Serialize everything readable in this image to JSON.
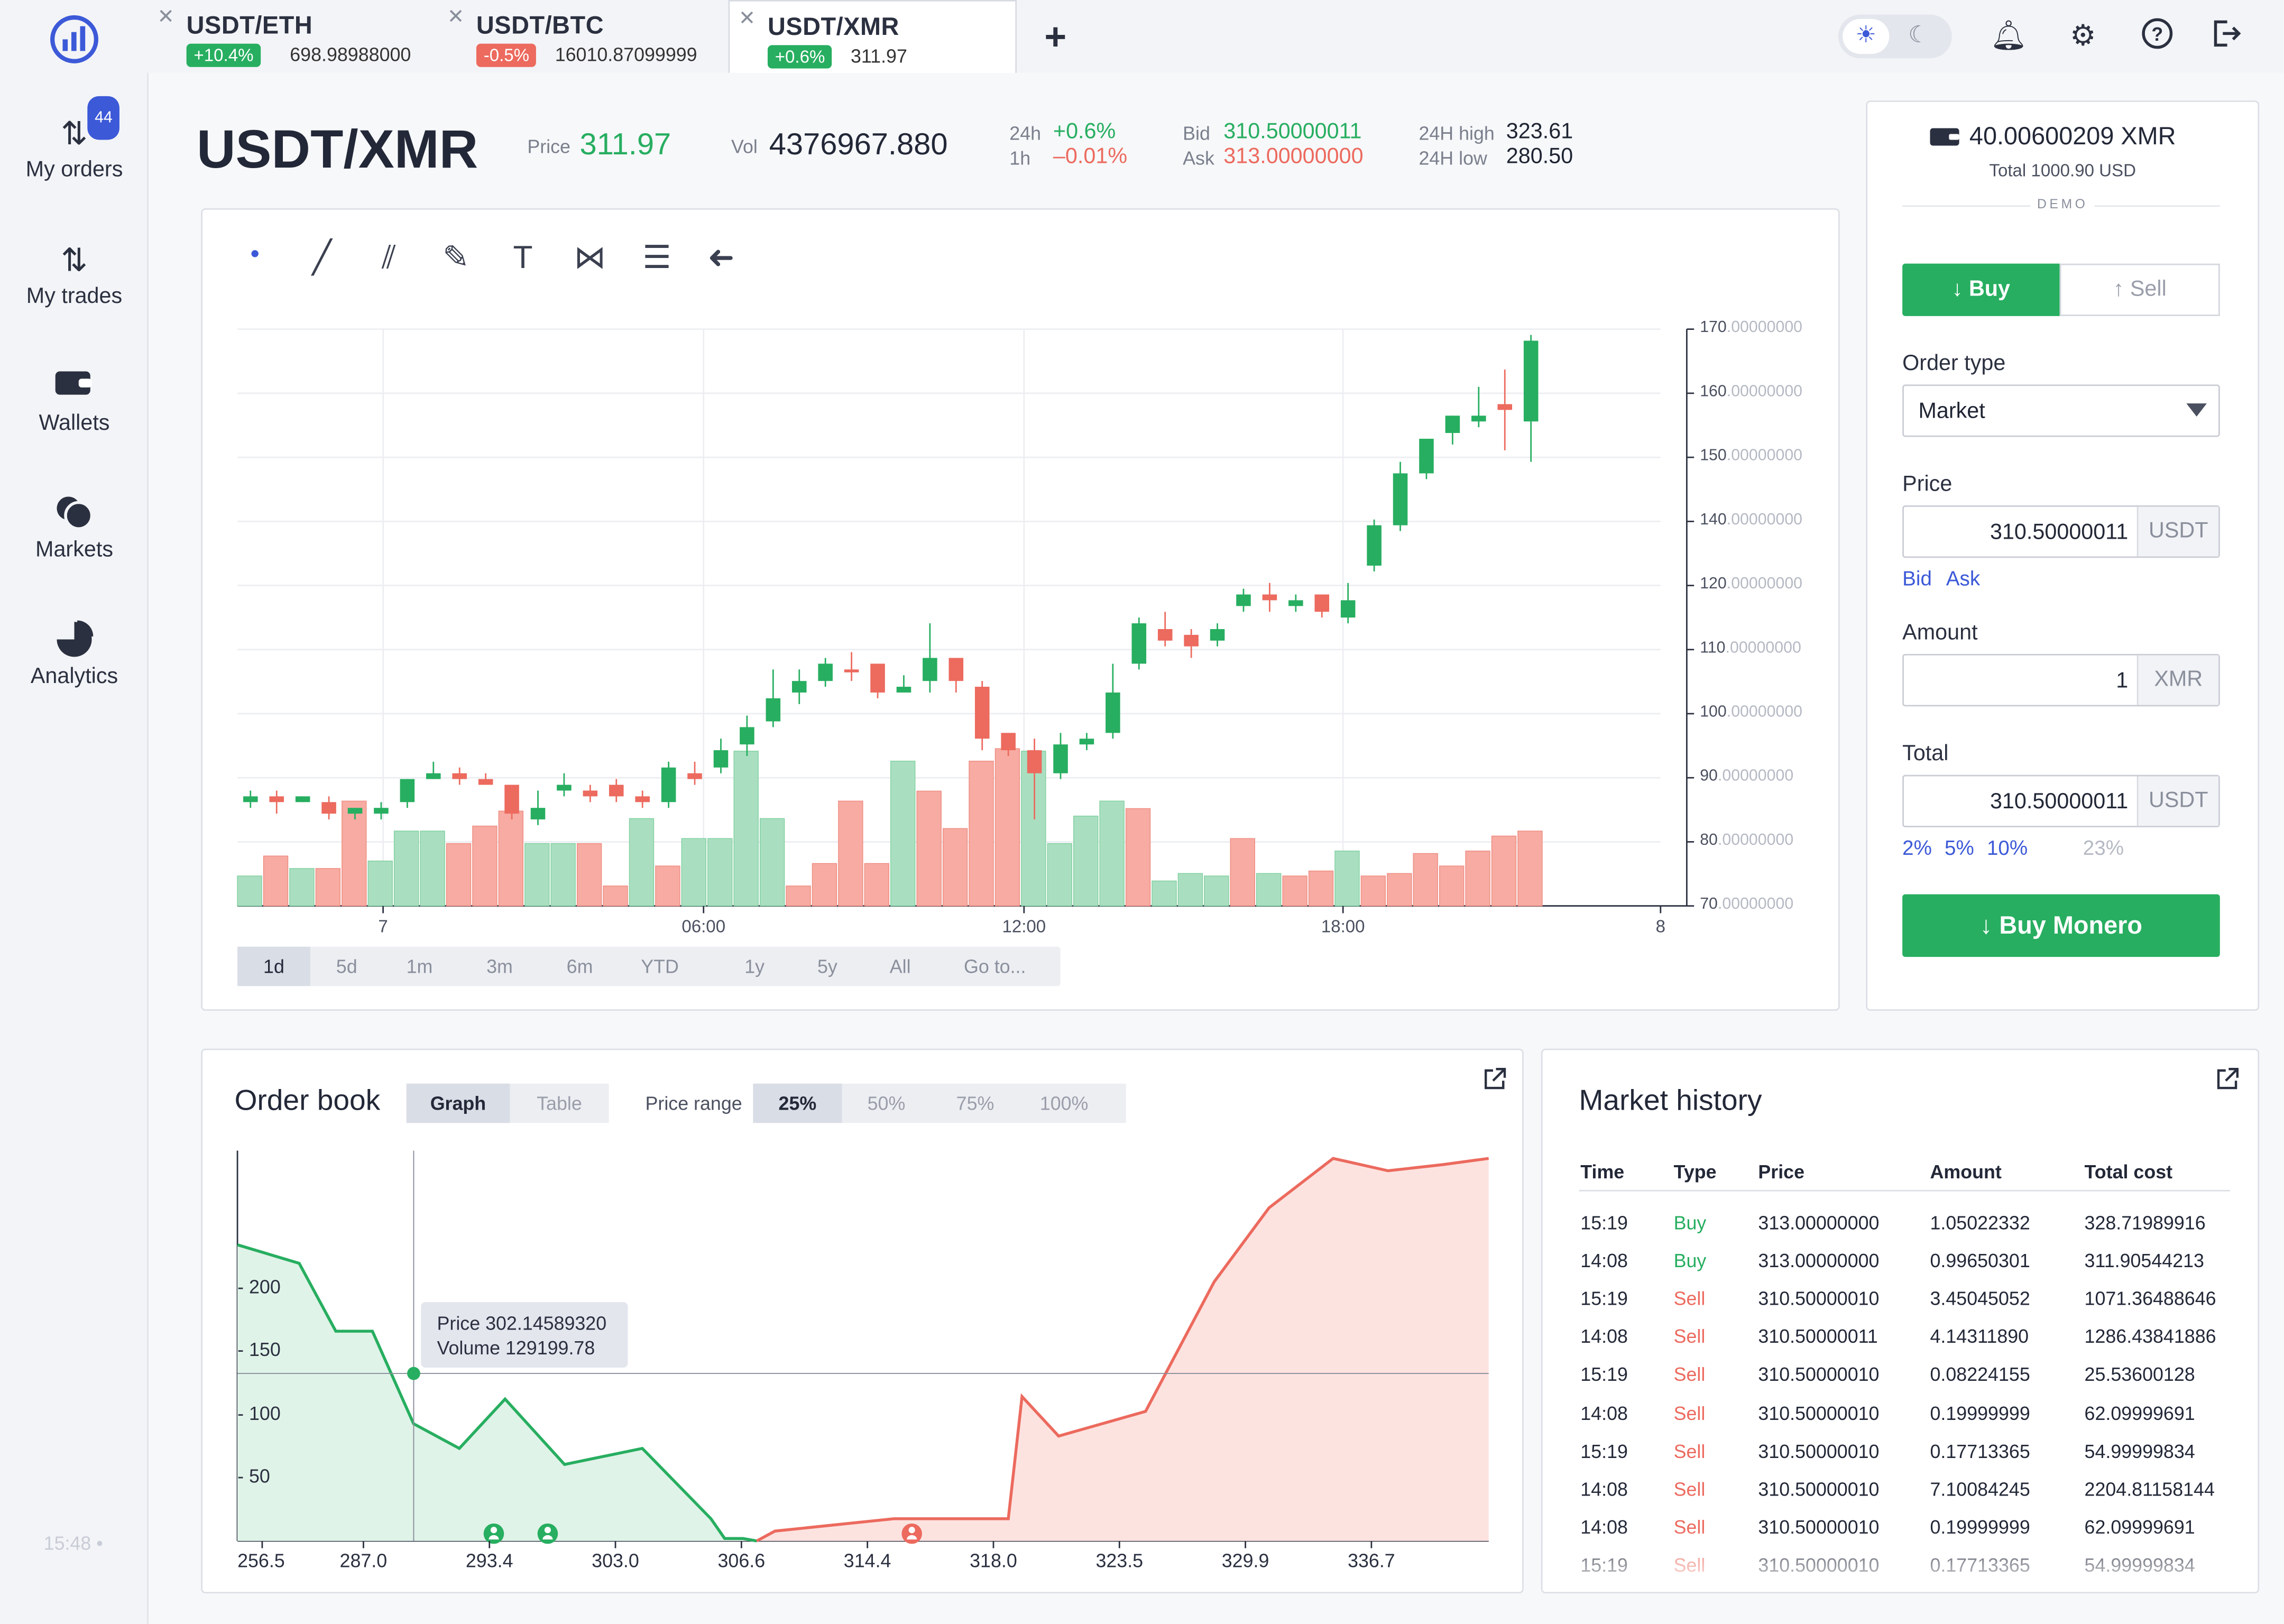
{
  "tabs": [
    {
      "pair": "USDT/ETH",
      "change": "+10.4%",
      "change_dir": "up",
      "price": "698.98988000"
    },
    {
      "pair": "USDT/BTC",
      "change": "-0.5%",
      "change_dir": "down",
      "price": "16010.87099999"
    },
    {
      "pair": "USDT/XMR",
      "change": "+0.6%",
      "change_dir": "up",
      "price": "311.97",
      "active": true
    }
  ],
  "topbar": {
    "add_tab": "+",
    "icons": [
      "sun-icon",
      "moon-icon",
      "bell-icon",
      "gear-icon",
      "help-icon",
      "logout-icon"
    ]
  },
  "sidebar": {
    "items": [
      {
        "label": "My orders",
        "icon": "arrows-updown-icon",
        "badge": "44"
      },
      {
        "label": "My trades",
        "icon": "trades-icon"
      },
      {
        "label": "Wallets",
        "icon": "wallet-icon"
      },
      {
        "label": "Markets",
        "icon": "markets-icon"
      },
      {
        "label": "Analytics",
        "icon": "pie-chart-icon"
      }
    ],
    "clock": "15:48 •"
  },
  "header": {
    "symbol": "USDT/XMR",
    "price_label": "Price",
    "price": "311.97",
    "vol_label": "Vol",
    "vol": "4376967.880",
    "h24_label": "24h",
    "h24": "+0.6%",
    "h1_label": "1h",
    "h1": "–0.01%",
    "bid_label": "Bid",
    "bid": "310.50000011",
    "ask_label": "Ask",
    "ask": "313.00000000",
    "high_label": "24H high",
    "high": "323.61",
    "low_label": "24H low",
    "low": "280.50"
  },
  "chart_tools": [
    "dot-icon",
    "line-tool-icon",
    "fib-tool-icon",
    "brush-tool-icon",
    "text-tool-icon",
    "pattern-tool-icon",
    "measure-tool-icon",
    "undo-icon"
  ],
  "chart_data": {
    "type": "candlestick",
    "ylim": [
      70,
      170
    ],
    "yticks": [
      {
        "int": "170",
        "dec": ".00000000"
      },
      {
        "int": "160",
        "dec": ".00000000"
      },
      {
        "int": "150",
        "dec": ".00000000"
      },
      {
        "int": "140",
        "dec": ".00000000"
      },
      {
        "int": "120",
        "dec": ".00000000"
      },
      {
        "int": "110",
        "dec": ".00000000"
      },
      {
        "int": "100",
        "dec": ".00000000"
      },
      {
        "int": "90",
        "dec": ".00000000"
      },
      {
        "int": "80",
        "dec": ".00000000"
      },
      {
        "int": "70",
        "dec": ".00000000"
      }
    ],
    "xticks": [
      "7",
      "06:00",
      "12:00",
      "18:00",
      "8"
    ],
    "candles": [
      [
        89,
        88,
        90,
        87,
        "up"
      ],
      [
        88,
        89,
        90,
        86,
        "down"
      ],
      [
        89,
        88,
        89,
        88,
        "up"
      ],
      [
        88,
        86,
        89,
        85,
        "down"
      ],
      [
        86,
        87,
        87,
        85,
        "up"
      ],
      [
        87,
        86,
        88,
        85,
        "up"
      ],
      [
        88,
        92,
        92,
        87,
        "up"
      ],
      [
        92,
        93,
        95,
        92,
        "up"
      ],
      [
        92,
        93,
        94,
        91,
        "down"
      ],
      [
        92,
        91,
        93,
        91,
        "down"
      ],
      [
        91,
        86,
        91,
        85,
        "down"
      ],
      [
        87,
        85,
        90,
        84,
        "up"
      ],
      [
        90,
        91,
        93,
        89,
        "up"
      ],
      [
        89,
        90,
        91,
        88,
        "down"
      ],
      [
        91,
        89,
        92,
        88,
        "down"
      ],
      [
        89,
        88,
        90,
        87,
        "down"
      ],
      [
        88,
        94,
        95,
        87,
        "up"
      ],
      [
        93,
        92,
        95,
        91,
        "down"
      ],
      [
        94,
        97,
        99,
        93,
        "up"
      ],
      [
        98,
        101,
        103,
        96,
        "up"
      ],
      [
        102,
        106,
        111,
        101,
        "up"
      ],
      [
        107,
        109,
        111,
        105,
        "up"
      ],
      [
        109,
        112,
        113,
        108,
        "up"
      ],
      [
        111,
        111,
        114,
        109,
        "down"
      ],
      [
        112,
        107,
        112,
        106,
        "down"
      ],
      [
        107,
        108,
        110,
        107,
        "up"
      ],
      [
        109,
        113,
        119,
        107,
        "up"
      ],
      [
        113,
        109,
        113,
        107,
        "down"
      ],
      [
        108,
        99,
        109,
        97,
        "down"
      ],
      [
        100,
        97,
        100,
        96,
        "down"
      ],
      [
        97,
        93,
        99,
        85,
        "down"
      ],
      [
        93,
        98,
        100,
        92,
        "up"
      ],
      [
        98,
        99,
        100,
        97,
        "up"
      ],
      [
        100,
        107,
        112,
        99,
        "up"
      ],
      [
        112,
        119,
        120,
        111,
        "up"
      ],
      [
        118,
        116,
        121,
        115,
        "down"
      ],
      [
        117,
        115,
        118,
        113,
        "down"
      ],
      [
        116,
        118,
        119,
        115,
        "up"
      ],
      [
        122,
        124,
        125,
        121,
        "up"
      ],
      [
        124,
        123,
        126,
        121,
        "down"
      ],
      [
        122,
        123,
        124,
        121,
        "up"
      ],
      [
        124,
        121,
        124,
        120,
        "down"
      ],
      [
        120,
        123,
        126,
        119,
        "up"
      ],
      [
        129,
        136,
        137,
        128,
        "up"
      ],
      [
        136,
        145,
        147,
        135,
        "up"
      ],
      [
        145,
        151,
        151,
        144,
        "up"
      ],
      [
        152,
        155,
        155,
        150,
        "up"
      ],
      [
        154,
        155,
        160,
        153,
        "up"
      ],
      [
        156,
        157,
        163,
        149,
        "down"
      ],
      [
        154,
        168,
        169,
        147,
        "up"
      ]
    ],
    "volumes": [
      [
        12,
        "up"
      ],
      [
        20,
        "down"
      ],
      [
        15,
        "up"
      ],
      [
        15,
        "down"
      ],
      [
        42,
        "down"
      ],
      [
        18,
        "up"
      ],
      [
        30,
        "up"
      ],
      [
        30,
        "up"
      ],
      [
        25,
        "down"
      ],
      [
        32,
        "down"
      ],
      [
        38,
        "down"
      ],
      [
        25,
        "up"
      ],
      [
        25,
        "up"
      ],
      [
        25,
        "down"
      ],
      [
        8,
        "down"
      ],
      [
        35,
        "up"
      ],
      [
        16,
        "down"
      ],
      [
        27,
        "up"
      ],
      [
        27,
        "up"
      ],
      [
        62,
        "up"
      ],
      [
        35,
        "up"
      ],
      [
        8,
        "down"
      ],
      [
        17,
        "down"
      ],
      [
        42,
        "down"
      ],
      [
        17,
        "down"
      ],
      [
        58,
        "up"
      ],
      [
        46,
        "down"
      ],
      [
        31,
        "down"
      ],
      [
        58,
        "down"
      ],
      [
        63,
        "down"
      ],
      [
        62,
        "up"
      ],
      [
        25,
        "up"
      ],
      [
        36,
        "up"
      ],
      [
        42,
        "up"
      ],
      [
        39,
        "down"
      ],
      [
        10,
        "up"
      ],
      [
        13,
        "up"
      ],
      [
        12,
        "up"
      ],
      [
        27,
        "down"
      ],
      [
        13,
        "up"
      ],
      [
        12,
        "down"
      ],
      [
        14,
        "down"
      ],
      [
        22,
        "up"
      ],
      [
        12,
        "down"
      ],
      [
        13,
        "down"
      ],
      [
        21,
        "down"
      ],
      [
        16,
        "down"
      ],
      [
        22,
        "down"
      ],
      [
        28,
        "down"
      ],
      [
        30,
        "down"
      ]
    ]
  },
  "ranges": {
    "items": [
      "1d",
      "5d",
      "1m",
      "3m",
      "6m",
      "YTD",
      "1y",
      "5y",
      "All",
      "Go to..."
    ],
    "selected": "1d"
  },
  "order_panel": {
    "balance": "40.00600209 XMR",
    "total": "Total 1000.90 USD",
    "demo": "DEMO",
    "buy": "Buy",
    "sell": "Sell",
    "order_type_label": "Order type",
    "order_type": "Market",
    "price_label": "Price",
    "price": "310.50000011",
    "price_unit": "USDT",
    "bid_link": "Bid",
    "ask_link": "Ask",
    "amount_label": "Amount",
    "amount": "1",
    "amount_unit": "XMR",
    "total_label": "Total",
    "total_value": "310.50000011",
    "total_unit": "USDT",
    "pcts": [
      "2%",
      "5%",
      "10%",
      "23%"
    ],
    "submit": "Buy Monero"
  },
  "orderbook": {
    "title": "Order book",
    "view_graph": "Graph",
    "view_table": "Table",
    "range_label": "Price range",
    "ranges": [
      "25%",
      "50%",
      "75%",
      "100%"
    ],
    "range_selected": "25%",
    "tooltip_price": "Price 302.14589320",
    "tooltip_volume": "Volume 129199.78",
    "yticks": [
      "200",
      "150",
      "100",
      "50"
    ],
    "xticks": [
      "256.5",
      "287.0",
      "293.4",
      "303.0",
      "306.6",
      "314.4",
      "318.0",
      "323.5",
      "329.9",
      "336.7"
    ],
    "bids": [
      [
        256.5,
        240
      ],
      [
        270,
        225
      ],
      [
        278,
        170
      ],
      [
        286,
        170
      ],
      [
        295,
        95
      ],
      [
        305,
        75
      ],
      [
        315,
        115
      ],
      [
        328,
        62
      ],
      [
        345,
        75
      ],
      [
        360,
        18
      ],
      [
        363,
        2
      ],
      [
        367,
        2
      ],
      [
        370,
        0
      ]
    ],
    "asks": [
      [
        370,
        0
      ],
      [
        374,
        8
      ],
      [
        400,
        18
      ],
      [
        425,
        18
      ],
      [
        428,
        117
      ],
      [
        436,
        85
      ],
      [
        455,
        105
      ],
      [
        470,
        210
      ],
      [
        482,
        270
      ],
      [
        496,
        310
      ],
      [
        508,
        300
      ],
      [
        520,
        305
      ],
      [
        530,
        310
      ]
    ]
  },
  "market_history": {
    "title": "Market history",
    "columns": [
      "Time",
      "Type",
      "Price",
      "Amount",
      "Total cost"
    ],
    "rows": [
      [
        "15:19",
        "Buy",
        "313.00000000",
        "1.05022332",
        "328.71989916"
      ],
      [
        "14:08",
        "Buy",
        "313.00000000",
        "0.99650301",
        "311.90544213"
      ],
      [
        "15:19",
        "Sell",
        "310.50000010",
        "3.45045052",
        "1071.36488646"
      ],
      [
        "14:08",
        "Sell",
        "310.50000011",
        "4.14311890",
        "1286.43841886"
      ],
      [
        "15:19",
        "Sell",
        "310.50000010",
        "0.08224155",
        "25.53600128"
      ],
      [
        "14:08",
        "Sell",
        "310.50000010",
        "0.19999999",
        "62.09999691"
      ],
      [
        "15:19",
        "Sell",
        "310.50000010",
        "0.17713365",
        "54.99999834"
      ],
      [
        "14:08",
        "Sell",
        "310.50000010",
        "7.10084245",
        "2204.81158144"
      ],
      [
        "14:08",
        "Sell",
        "310.50000010",
        "0.19999999",
        "62.09999691"
      ],
      [
        "15:19",
        "Sell",
        "310.50000010",
        "0.17713365",
        "54.99999834"
      ]
    ]
  },
  "colors": {
    "green": "#27ae60",
    "red": "#ec6a5e",
    "blue": "#3c59d8"
  }
}
